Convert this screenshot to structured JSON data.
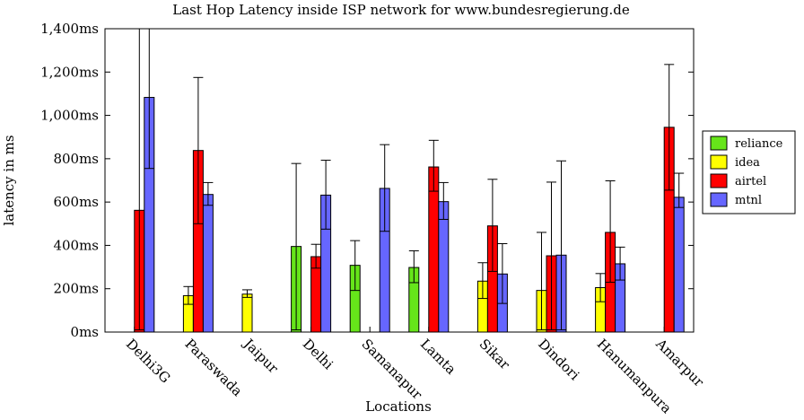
{
  "chart_data": {
    "type": "bar",
    "title": "Last Hop Latency inside ISP network for www.bundesregierung.de",
    "xlabel": "Locations",
    "ylabel": "latency in ms",
    "ylim": [
      0,
      1400
    ],
    "yticks": [
      {
        "value": 0,
        "label": "0ms"
      },
      {
        "value": 200,
        "label": "200ms"
      },
      {
        "value": 400,
        "label": "400ms"
      },
      {
        "value": 600,
        "label": "600ms"
      },
      {
        "value": 800,
        "label": "800ms"
      },
      {
        "value": 1000,
        "label": "1,000ms"
      },
      {
        "value": 1200,
        "label": "1,200ms"
      },
      {
        "value": 1400,
        "label": "1,400ms"
      }
    ],
    "categories": [
      "Delhi3G",
      "Paraswada",
      "Jaipur",
      "Delhi",
      "Samanapur",
      "Lamta",
      "Sikar",
      "Dindori",
      "Hanumanpura",
      "Amarpur"
    ],
    "grid": false,
    "legend_position": "right",
    "series": [
      {
        "name": "reliance",
        "color": "#66e51a",
        "values": [
          null,
          null,
          null,
          395,
          308,
          298,
          null,
          null,
          null,
          null
        ],
        "errors": [
          null,
          null,
          null,
          [
            10,
            778
          ],
          [
            192,
            422
          ],
          [
            228,
            375
          ],
          null,
          null,
          null,
          null
        ]
      },
      {
        "name": "idea",
        "color": "#ffff00",
        "values": [
          null,
          168,
          175,
          null,
          null,
          null,
          235,
          192,
          205,
          null
        ],
        "errors": [
          null,
          [
            128,
            210
          ],
          [
            160,
            195
          ],
          null,
          null,
          null,
          [
            155,
            320
          ],
          [
            10,
            460
          ],
          [
            140,
            270
          ],
          null
        ]
      },
      {
        "name": "airtel",
        "color": "#ff0000",
        "values": [
          562,
          838,
          null,
          348,
          null,
          762,
          490,
          352,
          460,
          945
        ],
        "errors": [
          [
            10,
            1400
          ],
          [
            500,
            1175
          ],
          null,
          [
            295,
            405
          ],
          null,
          [
            650,
            885
          ],
          [
            280,
            705
          ],
          [
            10,
            692
          ],
          [
            230,
            698
          ],
          [
            655,
            1235
          ]
        ]
      },
      {
        "name": "mtnl",
        "color": "#6666ff",
        "values": [
          1083,
          635,
          null,
          632,
          663,
          602,
          268,
          355,
          315,
          622
        ],
        "errors": [
          [
            755,
            1400
          ],
          [
            585,
            690
          ],
          null,
          [
            475,
            793
          ],
          [
            465,
            865
          ],
          [
            520,
            690
          ],
          [
            132,
            408
          ],
          [
            10,
            790
          ],
          [
            240,
            392
          ],
          [
            575,
            733
          ]
        ]
      }
    ]
  }
}
